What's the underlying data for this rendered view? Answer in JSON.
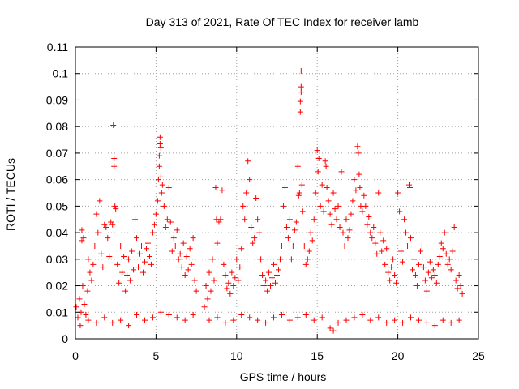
{
  "chart_data": {
    "type": "scatter",
    "title": "Day 313 of 2021, Rate Of TEC Index for receiver lamb",
    "xlabel": "GPS time / hours",
    "ylabel": "ROTI / TECUs",
    "xlim": [
      0,
      25
    ],
    "ylim": [
      0,
      0.11
    ],
    "x_ticks": [
      "0",
      "5",
      "10",
      "15",
      "20",
      "25"
    ],
    "y_ticks": [
      "0",
      "0.01",
      "0.02",
      "0.03",
      "0.04",
      "0.05",
      "0.06",
      "0.07",
      "0.08",
      "0.09",
      "0.1",
      "0.11"
    ],
    "grid": true,
    "marker": "+",
    "color": "#ff0000",
    "series": [
      {
        "points": [
          [
            0.05,
            0.012
          ],
          [
            0.15,
            0.008
          ],
          [
            0.25,
            0.015
          ],
          [
            0.35,
            0.01
          ],
          [
            0.45,
            0.02
          ],
          [
            0.55,
            0.013
          ],
          [
            0.65,
            0.009
          ],
          [
            0.75,
            0.018
          ],
          [
            0.4,
            0.041
          ],
          [
            0.4,
            0.037
          ],
          [
            0.5,
            0.038
          ],
          [
            0.8,
            0.03
          ],
          [
            0.9,
            0.025
          ],
          [
            1.0,
            0.022
          ],
          [
            1.1,
            0.028
          ],
          [
            1.2,
            0.035
          ],
          [
            1.3,
            0.047
          ],
          [
            1.4,
            0.04
          ],
          [
            1.5,
            0.052
          ],
          [
            1.6,
            0.032
          ],
          [
            1.7,
            0.027
          ],
          [
            1.8,
            0.043
          ],
          [
            1.9,
            0.042
          ],
          [
            2.0,
            0.038
          ],
          [
            2.1,
            0.031
          ],
          [
            2.2,
            0.044
          ],
          [
            2.3,
            0.043
          ],
          [
            2.35,
            0.0805
          ],
          [
            2.4,
            0.068
          ],
          [
            2.4,
            0.065
          ],
          [
            2.45,
            0.05
          ],
          [
            2.5,
            0.049
          ],
          [
            2.6,
            0.028
          ],
          [
            2.7,
            0.021
          ],
          [
            2.8,
            0.035
          ],
          [
            2.9,
            0.025
          ],
          [
            3.0,
            0.031
          ],
          [
            3.1,
            0.018
          ],
          [
            3.2,
            0.024
          ],
          [
            3.3,
            0.03
          ],
          [
            3.4,
            0.022
          ],
          [
            3.5,
            0.033
          ],
          [
            3.6,
            0.026
          ],
          [
            3.7,
            0.045
          ],
          [
            3.8,
            0.038
          ],
          [
            3.9,
            0.027
          ],
          [
            4.0,
            0.032
          ],
          [
            4.1,
            0.035
          ],
          [
            4.2,
            0.025
          ],
          [
            4.3,
            0.029
          ],
          [
            4.4,
            0.034
          ],
          [
            4.5,
            0.036
          ],
          [
            4.6,
            0.031
          ],
          [
            4.7,
            0.028
          ],
          [
            4.8,
            0.04
          ],
          [
            4.9,
            0.043
          ],
          [
            5.0,
            0.047
          ],
          [
            5.1,
            0.052
          ],
          [
            5.15,
            0.06
          ],
          [
            5.2,
            0.065
          ],
          [
            5.2,
            0.069
          ],
          [
            5.25,
            0.0735
          ],
          [
            5.25,
            0.076
          ],
          [
            5.3,
            0.072
          ],
          [
            5.3,
            0.061
          ],
          [
            5.35,
            0.055
          ],
          [
            5.4,
            0.058
          ],
          [
            5.5,
            0.05
          ],
          [
            5.6,
            0.042
          ],
          [
            5.7,
            0.045
          ],
          [
            5.8,
            0.057
          ],
          [
            5.9,
            0.044
          ],
          [
            6.0,
            0.033
          ],
          [
            6.1,
            0.038
          ],
          [
            6.2,
            0.035
          ],
          [
            6.3,
            0.041
          ],
          [
            6.4,
            0.03
          ],
          [
            6.5,
            0.032
          ],
          [
            6.6,
            0.027
          ],
          [
            6.7,
            0.036
          ],
          [
            6.8,
            0.024
          ],
          [
            6.9,
            0.031
          ],
          [
            7.0,
            0.026
          ],
          [
            7.1,
            0.034
          ],
          [
            7.2,
            0.028
          ],
          [
            7.3,
            0.038
          ],
          [
            7.4,
            0.022
          ],
          [
            7.5,
            0.018
          ],
          [
            0.3,
            0.005
          ],
          [
            0.8,
            0.007
          ],
          [
            1.3,
            0.006
          ],
          [
            1.8,
            0.008
          ],
          [
            2.3,
            0.006
          ],
          [
            2.8,
            0.007
          ],
          [
            3.3,
            0.005
          ],
          [
            3.8,
            0.009
          ],
          [
            4.3,
            0.007
          ],
          [
            4.8,
            0.008
          ],
          [
            5.3,
            0.01
          ],
          [
            5.8,
            0.009
          ],
          [
            6.3,
            0.008
          ],
          [
            6.8,
            0.007
          ],
          [
            7.3,
            0.009
          ],
          [
            8.0,
            0.012
          ],
          [
            8.1,
            0.02
          ],
          [
            8.2,
            0.015
          ],
          [
            8.3,
            0.025
          ],
          [
            8.4,
            0.018
          ],
          [
            8.5,
            0.03
          ],
          [
            8.6,
            0.022
          ],
          [
            8.7,
            0.057
          ],
          [
            8.75,
            0.045
          ],
          [
            8.8,
            0.036
          ],
          [
            8.9,
            0.044
          ],
          [
            9.0,
            0.045
          ],
          [
            9.1,
            0.056
          ],
          [
            9.2,
            0.028
          ],
          [
            9.3,
            0.024
          ],
          [
            9.4,
            0.019
          ],
          [
            9.5,
            0.021
          ],
          [
            9.6,
            0.017
          ],
          [
            9.7,
            0.025
          ],
          [
            9.8,
            0.02
          ],
          [
            9.9,
            0.023
          ],
          [
            10.0,
            0.03
          ],
          [
            10.1,
            0.022
          ],
          [
            10.2,
            0.027
          ],
          [
            10.3,
            0.034
          ],
          [
            10.4,
            0.05
          ],
          [
            10.5,
            0.045
          ],
          [
            10.6,
            0.055
          ],
          [
            10.7,
            0.067
          ],
          [
            10.8,
            0.06
          ],
          [
            10.9,
            0.042
          ],
          [
            11.0,
            0.036
          ],
          [
            11.1,
            0.038
          ],
          [
            11.2,
            0.053
          ],
          [
            11.3,
            0.045
          ],
          [
            11.4,
            0.04
          ],
          [
            11.5,
            0.03
          ],
          [
            11.6,
            0.024
          ],
          [
            11.7,
            0.02
          ],
          [
            11.8,
            0.022
          ],
          [
            11.9,
            0.018
          ],
          [
            12.0,
            0.025
          ],
          [
            12.1,
            0.02
          ],
          [
            12.2,
            0.023
          ],
          [
            12.3,
            0.028
          ],
          [
            12.4,
            0.021
          ],
          [
            12.5,
            0.024
          ],
          [
            12.6,
            0.026
          ],
          [
            12.7,
            0.03
          ],
          [
            12.8,
            0.035
          ],
          [
            12.9,
            0.05
          ],
          [
            13.0,
            0.057
          ],
          [
            13.1,
            0.042
          ],
          [
            13.2,
            0.038
          ],
          [
            13.3,
            0.045
          ],
          [
            13.4,
            0.03
          ],
          [
            13.5,
            0.035
          ],
          [
            13.6,
            0.041
          ],
          [
            13.7,
            0.044
          ],
          [
            13.8,
            0.065
          ],
          [
            13.85,
            0.054
          ],
          [
            13.9,
            0.055
          ],
          [
            13.95,
            0.0855
          ],
          [
            13.95,
            0.0895
          ],
          [
            14.0,
            0.093
          ],
          [
            14.0,
            0.095
          ],
          [
            14.0,
            0.101
          ],
          [
            14.05,
            0.058
          ],
          [
            14.1,
            0.048
          ],
          [
            14.2,
            0.035
          ],
          [
            14.3,
            0.028
          ],
          [
            14.4,
            0.03
          ],
          [
            14.5,
            0.033
          ],
          [
            14.6,
            0.04
          ],
          [
            14.7,
            0.037
          ],
          [
            14.8,
            0.045
          ],
          [
            14.9,
            0.055
          ],
          [
            15.0,
            0.071
          ],
          [
            15.05,
            0.063
          ],
          [
            15.1,
            0.068
          ],
          [
            15.2,
            0.05
          ],
          [
            15.3,
            0.058
          ],
          [
            15.4,
            0.048
          ],
          [
            15.5,
            0.067
          ],
          [
            15.55,
            0.065
          ],
          [
            15.6,
            0.057
          ],
          [
            15.7,
            0.052
          ],
          [
            15.8,
            0.047
          ],
          [
            15.9,
            0.043
          ],
          [
            16.0,
            0.055
          ],
          [
            16.1,
            0.049
          ],
          [
            16.2,
            0.045
          ],
          [
            16.3,
            0.05
          ],
          [
            16.4,
            0.042
          ],
          [
            16.5,
            0.063
          ],
          [
            16.6,
            0.04
          ],
          [
            16.7,
            0.035
          ],
          [
            16.8,
            0.045
          ],
          [
            16.9,
            0.038
          ],
          [
            17.0,
            0.041
          ],
          [
            17.1,
            0.047
          ],
          [
            17.2,
            0.052
          ],
          [
            17.3,
            0.06
          ],
          [
            17.4,
            0.056
          ],
          [
            17.5,
            0.0725
          ],
          [
            17.55,
            0.07
          ],
          [
            17.6,
            0.062
          ],
          [
            17.65,
            0.057
          ],
          [
            17.7,
            0.05
          ],
          [
            17.8,
            0.048
          ],
          [
            17.9,
            0.054
          ],
          [
            18.0,
            0.05
          ],
          [
            18.1,
            0.043
          ],
          [
            18.2,
            0.046
          ],
          [
            18.3,
            0.04
          ],
          [
            18.4,
            0.038
          ],
          [
            18.5,
            0.042
          ],
          [
            18.6,
            0.036
          ],
          [
            18.7,
            0.032
          ],
          [
            18.8,
            0.055
          ],
          [
            18.9,
            0.04
          ],
          [
            19.0,
            0.033
          ],
          [
            19.1,
            0.037
          ],
          [
            19.2,
            0.028
          ],
          [
            19.3,
            0.034
          ],
          [
            19.4,
            0.025
          ],
          [
            19.5,
            0.022
          ],
          [
            19.6,
            0.027
          ],
          [
            19.7,
            0.03
          ],
          [
            19.8,
            0.024
          ],
          [
            19.9,
            0.021
          ],
          [
            20.0,
            0.055
          ],
          [
            20.1,
            0.048
          ],
          [
            20.2,
            0.033
          ],
          [
            20.3,
            0.029
          ],
          [
            20.4,
            0.045
          ],
          [
            20.5,
            0.04
          ],
          [
            20.6,
            0.035
          ],
          [
            20.7,
            0.058
          ],
          [
            20.75,
            0.057
          ],
          [
            20.8,
            0.038
          ],
          [
            20.9,
            0.026
          ],
          [
            21.0,
            0.03
          ],
          [
            21.1,
            0.024
          ],
          [
            21.2,
            0.02
          ],
          [
            21.3,
            0.028
          ],
          [
            21.4,
            0.033
          ],
          [
            21.5,
            0.035
          ],
          [
            21.6,
            0.027
          ],
          [
            21.7,
            0.022
          ],
          [
            21.8,
            0.018
          ],
          [
            21.9,
            0.025
          ],
          [
            22.0,
            0.029
          ],
          [
            22.1,
            0.023
          ],
          [
            22.2,
            0.026
          ],
          [
            22.3,
            0.024
          ],
          [
            22.4,
            0.021
          ],
          [
            22.5,
            0.028
          ],
          [
            22.6,
            0.031
          ],
          [
            22.7,
            0.036
          ],
          [
            22.8,
            0.034
          ],
          [
            22.9,
            0.04
          ],
          [
            23.0,
            0.032
          ],
          [
            23.1,
            0.028
          ],
          [
            23.2,
            0.03
          ],
          [
            23.3,
            0.026
          ],
          [
            23.4,
            0.033
          ],
          [
            23.5,
            0.042
          ],
          [
            23.6,
            0.022
          ],
          [
            23.7,
            0.019
          ],
          [
            23.8,
            0.024
          ],
          [
            23.9,
            0.02
          ],
          [
            24.0,
            0.017
          ],
          [
            8.3,
            0.007
          ],
          [
            8.8,
            0.008
          ],
          [
            9.3,
            0.006
          ],
          [
            9.8,
            0.007
          ],
          [
            10.3,
            0.009
          ],
          [
            10.8,
            0.008
          ],
          [
            11.3,
            0.007
          ],
          [
            11.8,
            0.006
          ],
          [
            12.3,
            0.008
          ],
          [
            12.8,
            0.009
          ],
          [
            13.3,
            0.007
          ],
          [
            13.8,
            0.008
          ],
          [
            14.3,
            0.009
          ],
          [
            14.8,
            0.007
          ],
          [
            15.3,
            0.008
          ],
          [
            15.8,
            0.004
          ],
          [
            16.0,
            0.003
          ],
          [
            16.3,
            0.006
          ],
          [
            16.8,
            0.007
          ],
          [
            17.3,
            0.008
          ],
          [
            17.8,
            0.009
          ],
          [
            18.3,
            0.007
          ],
          [
            18.8,
            0.008
          ],
          [
            19.3,
            0.006
          ],
          [
            19.8,
            0.007
          ],
          [
            20.3,
            0.006
          ],
          [
            20.8,
            0.008
          ],
          [
            21.3,
            0.007
          ],
          [
            21.8,
            0.006
          ],
          [
            22.3,
            0.005
          ],
          [
            22.8,
            0.007
          ],
          [
            23.3,
            0.006
          ],
          [
            23.8,
            0.007
          ]
        ]
      }
    ]
  }
}
